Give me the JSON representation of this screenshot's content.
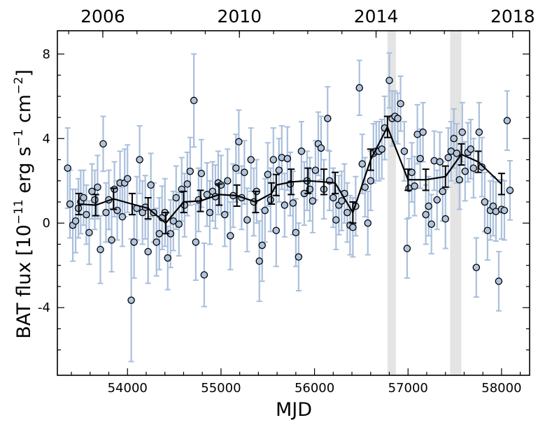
{
  "chart_data": {
    "type": "scatter",
    "xlabel": "MJD",
    "ylabel_main": "BAT flux [10",
    "ylabel_exp1": "−11",
    "ylabel_mid": " erg s",
    "ylabel_exp2": "−1",
    "ylabel_mid2": " cm",
    "ylabel_exp3": "−2",
    "ylabel_end": "]",
    "xlim": [
      53250,
      58300
    ],
    "ylim": [
      -7.2,
      9.1
    ],
    "x_ticks": [
      54000,
      55000,
      56000,
      57000,
      58000
    ],
    "x_tick_labels": [
      "54000",
      "55000",
      "56000",
      "57000",
      "58000"
    ],
    "y_ticks": [
      -4,
      0,
      4,
      8
    ],
    "y_tick_labels": [
      "-4",
      "0",
      "4",
      "8"
    ],
    "top_axis": {
      "ticks_mjd": [
        53736,
        55197,
        56658,
        58119
      ],
      "labels": [
        "2006",
        "2010",
        "2014",
        "2018"
      ]
    },
    "shaded_regions": [
      [
        56780,
        56870
      ],
      [
        57450,
        57570
      ]
    ],
    "colors": {
      "errorbar": "#a9bfdc",
      "marker_fill": "#b0c4de",
      "binned": "#000000",
      "shade": "#e4e4e4"
    },
    "points": [
      {
        "x": 53360,
        "y": 2.6,
        "e": 1.9
      },
      {
        "x": 53385,
        "y": 0.9,
        "e": 1.6
      },
      {
        "x": 53415,
        "y": -0.1,
        "e": 1.7
      },
      {
        "x": 53445,
        "y": 0.1,
        "e": 1.5
      },
      {
        "x": 53475,
        "y": 0.7,
        "e": 1.4
      },
      {
        "x": 53500,
        "y": 1.0,
        "e": 1.5
      },
      {
        "x": 53530,
        "y": 1.2,
        "e": 1.3
      },
      {
        "x": 53560,
        "y": 0.4,
        "e": 1.4
      },
      {
        "x": 53590,
        "y": -0.45,
        "e": 1.5
      },
      {
        "x": 53620,
        "y": 1.5,
        "e": 1.3
      },
      {
        "x": 53650,
        "y": 1.1,
        "e": 1.4
      },
      {
        "x": 53680,
        "y": 1.7,
        "e": 1.5
      },
      {
        "x": 53710,
        "y": -1.25,
        "e": 1.6
      },
      {
        "x": 53740,
        "y": 3.75,
        "e": 1.3
      },
      {
        "x": 53770,
        "y": 0.5,
        "e": 1.4
      },
      {
        "x": 53800,
        "y": 1.1,
        "e": 1.4
      },
      {
        "x": 53830,
        "y": -0.8,
        "e": 1.5
      },
      {
        "x": 53860,
        "y": 1.6,
        "e": 1.3
      },
      {
        "x": 53890,
        "y": 0.6,
        "e": 1.4
      },
      {
        "x": 53920,
        "y": 1.9,
        "e": 1.5
      },
      {
        "x": 53945,
        "y": 0.3,
        "e": 1.4
      },
      {
        "x": 53970,
        "y": 1.9,
        "e": 1.6
      },
      {
        "x": 54000,
        "y": 2.1,
        "e": 1.6
      },
      {
        "x": 54040,
        "y": -3.65,
        "e": 2.9
      },
      {
        "x": 54070,
        "y": -0.9,
        "e": 1.7
      },
      {
        "x": 54100,
        "y": 0.7,
        "e": 1.5
      },
      {
        "x": 54130,
        "y": 3.0,
        "e": 1.6
      },
      {
        "x": 54160,
        "y": 0.5,
        "e": 1.5
      },
      {
        "x": 54190,
        "y": 0.75,
        "e": 1.5
      },
      {
        "x": 54220,
        "y": -1.35,
        "e": 1.5
      },
      {
        "x": 54250,
        "y": 1.8,
        "e": 1.5
      },
      {
        "x": 54280,
        "y": 0.5,
        "e": 1.4
      },
      {
        "x": 54310,
        "y": -0.9,
        "e": 1.6
      },
      {
        "x": 54340,
        "y": -0.5,
        "e": 1.7
      },
      {
        "x": 54370,
        "y": 0.25,
        "e": 1.5
      },
      {
        "x": 54400,
        "y": 0.5,
        "e": 1.6
      },
      {
        "x": 54430,
        "y": -1.65,
        "e": 1.5
      },
      {
        "x": 54460,
        "y": -0.5,
        "e": 1.6
      },
      {
        "x": 54490,
        "y": 0.1,
        "e": 1.4
      },
      {
        "x": 54520,
        "y": 1.2,
        "e": 1.5
      },
      {
        "x": 54550,
        "y": -0.05,
        "e": 1.5
      },
      {
        "x": 54580,
        "y": 1.6,
        "e": 1.5
      },
      {
        "x": 54610,
        "y": 0.85,
        "e": 1.5
      },
      {
        "x": 54640,
        "y": 1.85,
        "e": 1.5
      },
      {
        "x": 54670,
        "y": 2.45,
        "e": 1.6
      },
      {
        "x": 54710,
        "y": 5.8,
        "e": 2.2
      },
      {
        "x": 54730,
        "y": -0.9,
        "e": 1.8
      },
      {
        "x": 54760,
        "y": 1.1,
        "e": 1.5
      },
      {
        "x": 54790,
        "y": 2.35,
        "e": 1.6
      },
      {
        "x": 54820,
        "y": -2.45,
        "e": 1.5
      },
      {
        "x": 54850,
        "y": 1.35,
        "e": 1.5
      },
      {
        "x": 54880,
        "y": 0.5,
        "e": 1.5
      },
      {
        "x": 54910,
        "y": 1.5,
        "e": 1.4
      },
      {
        "x": 54940,
        "y": 1.25,
        "e": 1.5
      },
      {
        "x": 54970,
        "y": 1.9,
        "e": 1.5
      },
      {
        "x": 55000,
        "y": 1.8,
        "e": 1.4
      },
      {
        "x": 55040,
        "y": 0.4,
        "e": 1.5
      },
      {
        "x": 55070,
        "y": 2.0,
        "e": 1.5
      },
      {
        "x": 55100,
        "y": -0.6,
        "e": 1.6
      },
      {
        "x": 55130,
        "y": 1.3,
        "e": 1.5
      },
      {
        "x": 55160,
        "y": 2.6,
        "e": 1.6
      },
      {
        "x": 55190,
        "y": 3.85,
        "e": 1.5
      },
      {
        "x": 55220,
        "y": 1.2,
        "e": 1.5
      },
      {
        "x": 55250,
        "y": 2.4,
        "e": 1.5
      },
      {
        "x": 55280,
        "y": 0.15,
        "e": 1.5
      },
      {
        "x": 55320,
        "y": 3.0,
        "e": 1.5
      },
      {
        "x": 55350,
        "y": 1.0,
        "e": 1.6
      },
      {
        "x": 55380,
        "y": 1.5,
        "e": 1.5
      },
      {
        "x": 55410,
        "y": -1.8,
        "e": 1.9
      },
      {
        "x": 55440,
        "y": -1.05,
        "e": 1.7
      },
      {
        "x": 55470,
        "y": 0.6,
        "e": 1.5
      },
      {
        "x": 55500,
        "y": 2.3,
        "e": 1.5
      },
      {
        "x": 55530,
        "y": 1.1,
        "e": 1.5
      },
      {
        "x": 55560,
        "y": 3.0,
        "e": 1.5
      },
      {
        "x": 55590,
        "y": -0.35,
        "e": 1.7
      },
      {
        "x": 55620,
        "y": 2.5,
        "e": 1.5
      },
      {
        "x": 55650,
        "y": 3.1,
        "e": 1.5
      },
      {
        "x": 55680,
        "y": 0.85,
        "e": 1.5
      },
      {
        "x": 55710,
        "y": 3.05,
        "e": 1.5
      },
      {
        "x": 55740,
        "y": 1.85,
        "e": 1.5
      },
      {
        "x": 55770,
        "y": 0.95,
        "e": 1.5
      },
      {
        "x": 55800,
        "y": -0.45,
        "e": 1.6
      },
      {
        "x": 55830,
        "y": -1.6,
        "e": 1.6
      },
      {
        "x": 55860,
        "y": 3.4,
        "e": 1.4
      },
      {
        "x": 55890,
        "y": 1.4,
        "e": 1.5
      },
      {
        "x": 55920,
        "y": 2.0,
        "e": 1.4
      },
      {
        "x": 55950,
        "y": 1.6,
        "e": 1.5
      },
      {
        "x": 55980,
        "y": 1.05,
        "e": 1.5
      },
      {
        "x": 56010,
        "y": 2.5,
        "e": 1.4
      },
      {
        "x": 56040,
        "y": 3.75,
        "e": 1.5
      },
      {
        "x": 56070,
        "y": 3.55,
        "e": 1.5
      },
      {
        "x": 56100,
        "y": 1.6,
        "e": 1.4
      },
      {
        "x": 56140,
        "y": 4.95,
        "e": 1.5
      },
      {
        "x": 56160,
        "y": 2.0,
        "e": 1.4
      },
      {
        "x": 56200,
        "y": 1.2,
        "e": 1.4
      },
      {
        "x": 56230,
        "y": 0.15,
        "e": 1.4
      },
      {
        "x": 56260,
        "y": 0.85,
        "e": 1.4
      },
      {
        "x": 56290,
        "y": 1.05,
        "e": 1.4
      },
      {
        "x": 56320,
        "y": 1.4,
        "e": 1.4
      },
      {
        "x": 56350,
        "y": 0.5,
        "e": 1.4
      },
      {
        "x": 56380,
        "y": -0.1,
        "e": 1.4
      },
      {
        "x": 56410,
        "y": -0.2,
        "e": 1.4
      },
      {
        "x": 56440,
        "y": 0.8,
        "e": 1.4
      },
      {
        "x": 56480,
        "y": 6.4,
        "e": 1.3
      },
      {
        "x": 56510,
        "y": 2.8,
        "e": 1.4
      },
      {
        "x": 56540,
        "y": 1.7,
        "e": 1.4
      },
      {
        "x": 56570,
        "y": 0.0,
        "e": 1.5
      },
      {
        "x": 56600,
        "y": 2.0,
        "e": 1.4
      },
      {
        "x": 56630,
        "y": 3.3,
        "e": 1.4
      },
      {
        "x": 56660,
        "y": 3.4,
        "e": 1.4
      },
      {
        "x": 56690,
        "y": 3.4,
        "e": 1.4
      },
      {
        "x": 56720,
        "y": 3.5,
        "e": 1.4
      },
      {
        "x": 56750,
        "y": 4.5,
        "e": 1.5
      },
      {
        "x": 56800,
        "y": 6.75,
        "e": 1.3
      },
      {
        "x": 56830,
        "y": 4.95,
        "e": 1.3
      },
      {
        "x": 56860,
        "y": 5.05,
        "e": 1.2
      },
      {
        "x": 56890,
        "y": 4.95,
        "e": 1.2
      },
      {
        "x": 56920,
        "y": 5.65,
        "e": 1.3
      },
      {
        "x": 56960,
        "y": 3.4,
        "e": 1.4
      },
      {
        "x": 56990,
        "y": -1.2,
        "e": 1.4
      },
      {
        "x": 57010,
        "y": 1.65,
        "e": 1.4
      },
      {
        "x": 57040,
        "y": 2.4,
        "e": 1.4
      },
      {
        "x": 57070,
        "y": 1.75,
        "e": 1.4
      },
      {
        "x": 57100,
        "y": 4.2,
        "e": 1.4
      },
      {
        "x": 57130,
        "y": 3.05,
        "e": 1.4
      },
      {
        "x": 57160,
        "y": 4.3,
        "e": 1.4
      },
      {
        "x": 57190,
        "y": 0.4,
        "e": 1.4
      },
      {
        "x": 57220,
        "y": 0.8,
        "e": 1.4
      },
      {
        "x": 57250,
        "y": -0.05,
        "e": 1.4
      },
      {
        "x": 57280,
        "y": 2.95,
        "e": 1.4
      },
      {
        "x": 57310,
        "y": 1.1,
        "e": 1.4
      },
      {
        "x": 57340,
        "y": 2.9,
        "e": 1.4
      },
      {
        "x": 57370,
        "y": 1.5,
        "e": 1.4
      },
      {
        "x": 57400,
        "y": 0.2,
        "e": 1.4
      },
      {
        "x": 57430,
        "y": 3.1,
        "e": 1.4
      },
      {
        "x": 57460,
        "y": 3.4,
        "e": 1.4
      },
      {
        "x": 57490,
        "y": 4.0,
        "e": 1.4
      },
      {
        "x": 57520,
        "y": 3.3,
        "e": 1.4
      },
      {
        "x": 57550,
        "y": 2.05,
        "e": 1.4
      },
      {
        "x": 57580,
        "y": 4.3,
        "e": 1.4
      },
      {
        "x": 57610,
        "y": 2.45,
        "e": 1.4
      },
      {
        "x": 57640,
        "y": 3.35,
        "e": 1.4
      },
      {
        "x": 57670,
        "y": 3.5,
        "e": 1.4
      },
      {
        "x": 57700,
        "y": 2.6,
        "e": 1.4
      },
      {
        "x": 57730,
        "y": -2.1,
        "e": 1.4
      },
      {
        "x": 57760,
        "y": 4.3,
        "e": 1.4
      },
      {
        "x": 57790,
        "y": 2.65,
        "e": 1.4
      },
      {
        "x": 57820,
        "y": 1.0,
        "e": 1.4
      },
      {
        "x": 57850,
        "y": -0.35,
        "e": 1.4
      },
      {
        "x": 57880,
        "y": 0.6,
        "e": 1.4
      },
      {
        "x": 57910,
        "y": 0.8,
        "e": 1.4
      },
      {
        "x": 57940,
        "y": 0.55,
        "e": 1.4
      },
      {
        "x": 57970,
        "y": -2.75,
        "e": 1.4
      },
      {
        "x": 58000,
        "y": 0.65,
        "e": 1.4
      },
      {
        "x": 58030,
        "y": 0.6,
        "e": 1.4
      },
      {
        "x": 58060,
        "y": 4.85,
        "e": 1.4
      },
      {
        "x": 58090,
        "y": 1.55,
        "e": 1.4
      }
    ],
    "binned": [
      {
        "x": 53480,
        "y": 0.9,
        "e": 0.5
      },
      {
        "x": 53660,
        "y": 0.85,
        "e": 0.5
      },
      {
        "x": 53850,
        "y": 1.15,
        "e": 0.5
      },
      {
        "x": 54050,
        "y": 0.9,
        "e": 0.5
      },
      {
        "x": 54220,
        "y": 0.7,
        "e": 0.5
      },
      {
        "x": 54410,
        "y": 0.0,
        "e": 0.5
      },
      {
        "x": 54600,
        "y": 1.0,
        "e": 0.5
      },
      {
        "x": 54780,
        "y": 1.05,
        "e": 0.5
      },
      {
        "x": 54980,
        "y": 1.35,
        "e": 0.5
      },
      {
        "x": 55170,
        "y": 1.3,
        "e": 0.5
      },
      {
        "x": 55370,
        "y": 1.0,
        "e": 0.5
      },
      {
        "x": 55540,
        "y": 1.4,
        "e": 0.5
      },
      {
        "x": 55590,
        "y": 1.8,
        "e": 0.5
      },
      {
        "x": 55750,
        "y": 1.95,
        "e": 0.6
      },
      {
        "x": 55930,
        "y": 2.0,
        "e": 0.6
      },
      {
        "x": 56100,
        "y": 1.95,
        "e": 0.6
      },
      {
        "x": 56220,
        "y": 1.9,
        "e": 0.5
      },
      {
        "x": 56410,
        "y": 0.5,
        "e": 0.5
      },
      {
        "x": 56600,
        "y": 3.0,
        "e": 0.5
      },
      {
        "x": 56780,
        "y": 4.55,
        "e": 0.5
      },
      {
        "x": 57000,
        "y": 2.05,
        "e": 0.5
      },
      {
        "x": 57190,
        "y": 2.05,
        "e": 0.5
      },
      {
        "x": 57400,
        "y": 2.2,
        "e": 0.5
      },
      {
        "x": 57570,
        "y": 3.25,
        "e": 0.5
      },
      {
        "x": 57750,
        "y": 2.9,
        "e": 0.5
      },
      {
        "x": 58000,
        "y": 1.85,
        "e": 0.5
      }
    ]
  }
}
